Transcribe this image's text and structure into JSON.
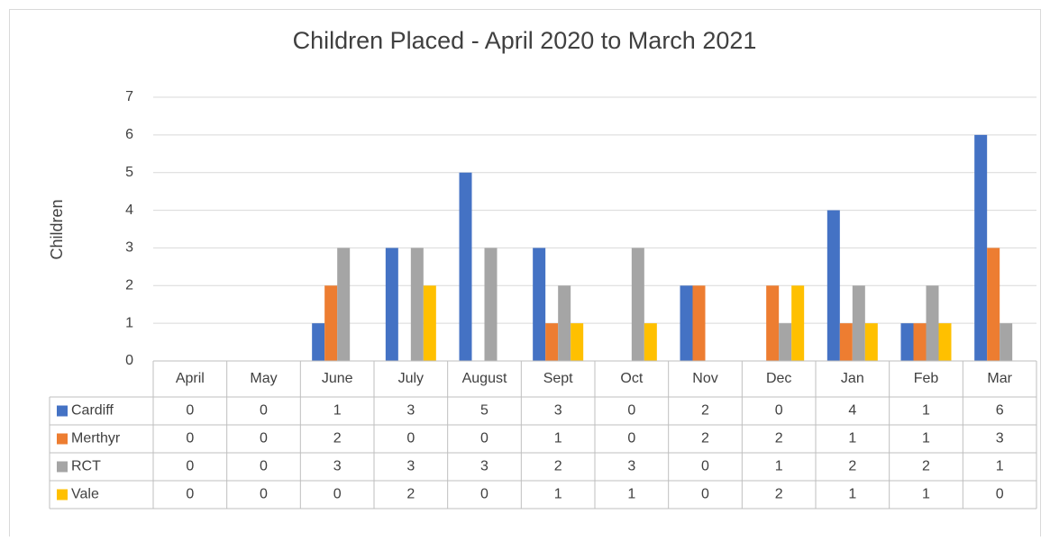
{
  "chart_data": {
    "type": "bar",
    "title": "Children Placed - April 2020 to March 2021",
    "y_label": "Children",
    "categories": [
      "April",
      "May",
      "June",
      "July",
      "August",
      "Sept",
      "Oct",
      "Nov",
      "Dec",
      "Jan",
      "Feb",
      "Mar"
    ],
    "series": [
      {
        "name": "Cardiff",
        "color": "#4472c4",
        "values": [
          0,
          0,
          1,
          3,
          5,
          3,
          0,
          2,
          0,
          4,
          1,
          6
        ]
      },
      {
        "name": "Merthyr",
        "color": "#ed7d31",
        "values": [
          0,
          0,
          2,
          0,
          0,
          1,
          0,
          2,
          2,
          1,
          1,
          3
        ]
      },
      {
        "name": "RCT",
        "color": "#a5a5a5",
        "values": [
          0,
          0,
          3,
          3,
          3,
          2,
          3,
          0,
          1,
          2,
          2,
          1
        ]
      },
      {
        "name": "Vale",
        "color": "#ffc000",
        "values": [
          0,
          0,
          0,
          2,
          0,
          1,
          1,
          0,
          2,
          1,
          1,
          0
        ]
      }
    ],
    "ylim": [
      0,
      7
    ],
    "yticks": [
      0,
      1,
      2,
      3,
      4,
      5,
      6,
      7
    ],
    "grid": true,
    "data_table": true
  }
}
